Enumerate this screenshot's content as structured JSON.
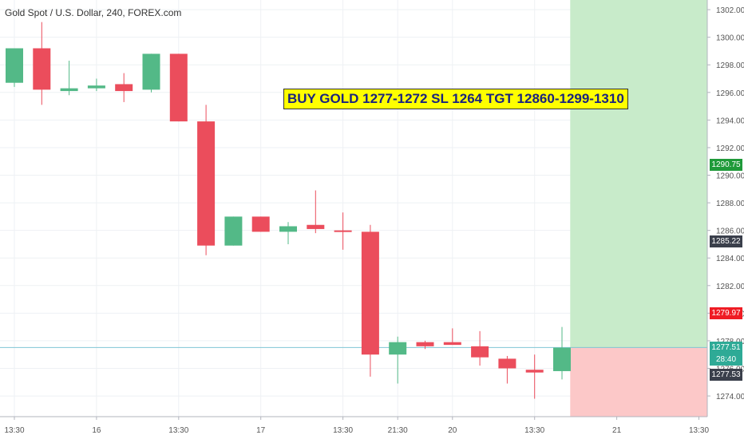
{
  "header": {
    "symbol_title": "Gold Spot / U.S. Dollar, 240, FOREX.com"
  },
  "annotation": {
    "text": "BUY GOLD 1277-1272 SL 1264 TGT 12860-1299-1310"
  },
  "price_badges": [
    {
      "label": "1290.75",
      "price": 1290.75,
      "color": "#1f9a3a"
    },
    {
      "label": "1285.22",
      "price": 1285.22,
      "color": "#3a3f4b"
    },
    {
      "label": "1279.97",
      "price": 1279.97,
      "color": "#ef1c24"
    },
    {
      "label": "1277.51",
      "price": 1277.51,
      "color": "#2eaa96"
    },
    {
      "label": "28:40",
      "price": 1276.65,
      "color": "#2eaa96"
    },
    {
      "label": "1277.53",
      "price": 1275.55,
      "color": "#3a3f4b"
    }
  ],
  "colors": {
    "up": "#53b987",
    "down": "#eb4d5c",
    "grid": "#eef1f4",
    "profit_zone": "#c8ebca",
    "loss_zone": "#fcc8c8",
    "current_price_line": "#80c6d4"
  },
  "chart_data": {
    "type": "candlestick",
    "y_axis": {
      "range": [
        1272.5,
        1302.7
      ],
      "tick_labels": [
        "1274.00",
        "1276.00",
        "1278.00",
        "1280.00",
        "1282.00",
        "1284.00",
        "1286.00",
        "1288.00",
        "1290.00",
        "1292.00",
        "1294.00",
        "1296.00",
        "1298.00",
        "1300.00",
        "1302.00"
      ],
      "tick_values": [
        1274,
        1276,
        1278,
        1280,
        1282,
        1284,
        1286,
        1288,
        1290,
        1292,
        1294,
        1296,
        1298,
        1300,
        1302
      ]
    },
    "x_axis": {
      "labels": [
        {
          "text": "13:30",
          "slot": 0
        },
        {
          "text": "16",
          "slot": 3
        },
        {
          "text": "13:30",
          "slot": 6
        },
        {
          "text": "17",
          "slot": 9
        },
        {
          "text": "13:30",
          "slot": 12
        },
        {
          "text": "21:30",
          "slot": 14
        },
        {
          "text": "20",
          "slot": 16
        },
        {
          "text": "13:30",
          "slot": 19
        },
        {
          "text": "21",
          "slot": 22
        },
        {
          "text": "13:30",
          "slot": 25
        }
      ]
    },
    "candles": [
      {
        "slot": 0,
        "open": 1296.7,
        "high": 1299.2,
        "low": 1296.4,
        "close": 1299.2
      },
      {
        "slot": 1,
        "open": 1299.2,
        "high": 1301.1,
        "low": 1295.1,
        "close": 1296.2
      },
      {
        "slot": 2,
        "open": 1296.1,
        "high": 1298.3,
        "low": 1295.8,
        "close": 1296.3
      },
      {
        "slot": 3,
        "open": 1296.3,
        "high": 1297.0,
        "low": 1296.1,
        "close": 1296.5
      },
      {
        "slot": 4,
        "open": 1296.6,
        "high": 1297.4,
        "low": 1295.3,
        "close": 1296.1
      },
      {
        "slot": 5,
        "open": 1296.2,
        "high": 1298.8,
        "low": 1296.0,
        "close": 1298.8
      },
      {
        "slot": 6,
        "open": 1298.8,
        "high": 1298.8,
        "low": 1293.9,
        "close": 1293.9
      },
      {
        "slot": 7,
        "open": 1293.9,
        "high": 1295.1,
        "low": 1284.2,
        "close": 1284.9
      },
      {
        "slot": 8,
        "open": 1284.9,
        "high": 1287.0,
        "low": 1284.9,
        "close": 1287.0
      },
      {
        "slot": 9,
        "open": 1287.0,
        "high": 1287.0,
        "low": 1285.9,
        "close": 1285.9
      },
      {
        "slot": 10,
        "open": 1285.9,
        "high": 1286.6,
        "low": 1285.0,
        "close": 1286.3
      },
      {
        "slot": 11,
        "open": 1286.4,
        "high": 1288.9,
        "low": 1285.8,
        "close": 1286.1
      },
      {
        "slot": 12,
        "open": 1286.0,
        "high": 1287.3,
        "low": 1284.6,
        "close": 1285.9
      },
      {
        "slot": 13,
        "open": 1285.9,
        "high": 1286.4,
        "low": 1275.4,
        "close": 1277.0
      },
      {
        "slot": 14,
        "open": 1277.0,
        "high": 1278.3,
        "low": 1274.9,
        "close": 1277.9
      },
      {
        "slot": 15,
        "open": 1277.9,
        "high": 1278.0,
        "low": 1277.4,
        "close": 1277.6
      },
      {
        "slot": 16,
        "open": 1277.9,
        "high": 1278.9,
        "low": 1277.7,
        "close": 1277.7
      },
      {
        "slot": 17,
        "open": 1277.6,
        "high": 1278.7,
        "low": 1276.2,
        "close": 1276.8
      },
      {
        "slot": 18,
        "open": 1276.7,
        "high": 1276.9,
        "low": 1274.9,
        "close": 1276.0
      },
      {
        "slot": 19,
        "open": 1275.9,
        "high": 1277.0,
        "low": 1273.8,
        "close": 1275.7
      },
      {
        "slot": 20,
        "open": 1275.8,
        "high": 1279.0,
        "low": 1275.2,
        "close": 1277.5
      }
    ],
    "current_price_line": 1277.51,
    "position": {
      "entry": 1277.51,
      "target": 1302.7,
      "stop": 1272.5,
      "start_slot": 20.3
    }
  }
}
